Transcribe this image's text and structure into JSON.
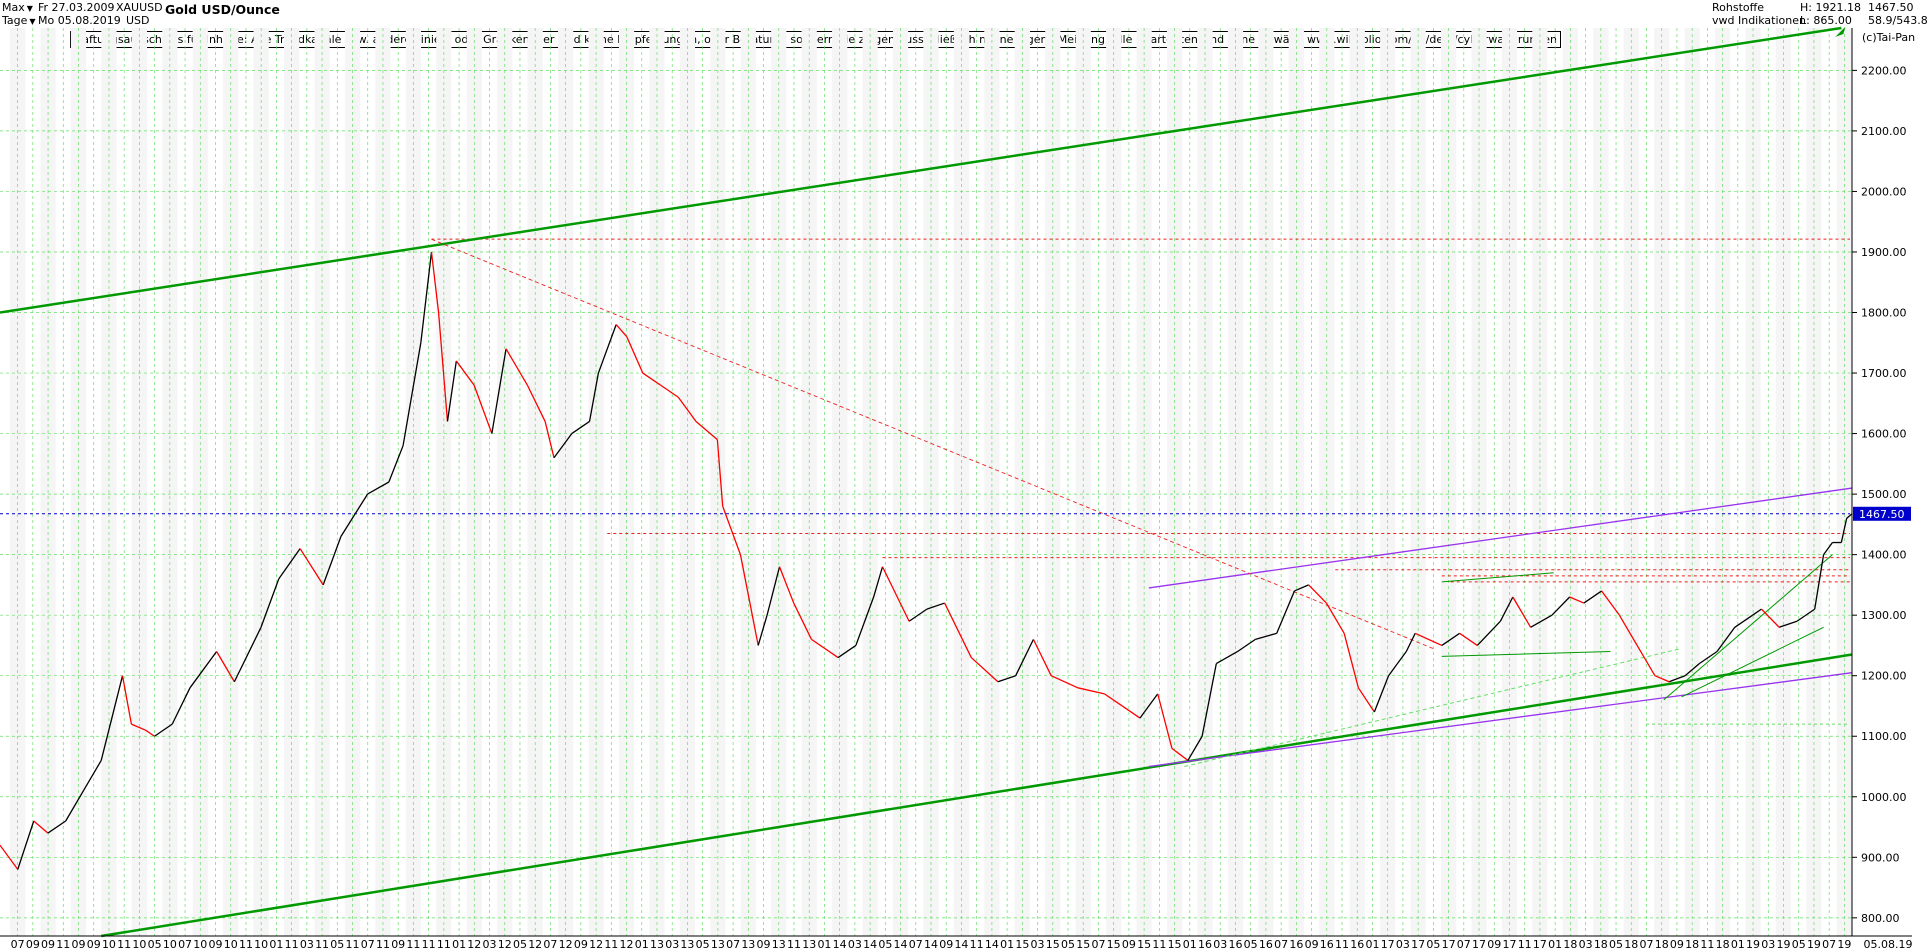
{
  "header": {
    "range": "Max",
    "interval": "Tage",
    "date_start": "Fr 27.03.2009",
    "date_end": "Mo 05.08.2019",
    "symbol": "XAUUSD",
    "currency": "USD",
    "title": "Gold USD/Ounce",
    "category": "Rohstoffe",
    "provider": "vwd Indikationen",
    "high": "H: 1921.18",
    "low": "L: 865.00",
    "last": "1467.50",
    "ratio": "58.9/543.8",
    "copyright": "(c)Tai-Pan",
    "end_date_label": "05.08.19"
  },
  "disclaimer": "Haftungsausschluss für Inhalte: Alle Trendkanäle bzw. andere Linien, oder Grafiken hier sind keine Empfehlungen, oder Beratung, sondern die zeigen ausschließlich meine eigene Meinung. Alle Chartdaten sind ohne Gewähr.  www.wikifolio.com/de/de/p/cyberwaehrungen",
  "colors": {
    "up": "#000000",
    "down": "#ff0000",
    "grid": "#66dd66",
    "main_channel": "#009900",
    "violet": "#9933ee",
    "ref_red": "#ee2222",
    "last_line": "#0000cc",
    "last_box": "#0000cc"
  },
  "chart_data": {
    "type": "line",
    "title": "Gold USD/Ounce",
    "ylim": [
      770,
      2270
    ],
    "y_ticks": [
      800,
      900,
      1000,
      1100,
      1200,
      1300,
      1400,
      1500,
      1600,
      1700,
      1800,
      1900,
      2000,
      2100,
      2200
    ],
    "y_tick_labels": [
      "800.00",
      "900.00",
      "1000.00",
      "1100.00",
      "1200.00",
      "1300.00",
      "1400.00",
      "1500.00",
      "1600.00",
      "1700.00",
      "1800.00",
      "1900.00",
      "2000.00",
      "2100.00",
      "2200.00"
    ],
    "x_range": [
      2009.23,
      2019.66
    ],
    "x_tick_labels": [
      "07",
      "09",
      "09",
      "11",
      "09",
      "09",
      "10",
      "11",
      "10",
      "05",
      "10",
      "07",
      "10",
      "09",
      "10",
      "11",
      "10",
      "01",
      "11",
      "03",
      "11",
      "05",
      "11",
      "07",
      "11",
      "09",
      "11",
      "11",
      "11",
      "01",
      "12",
      "03",
      "12",
      "05",
      "12",
      "07",
      "12",
      "09",
      "12",
      "11",
      "12",
      "01",
      "13",
      "03",
      "13",
      "05",
      "13",
      "07",
      "13",
      "09",
      "13",
      "11",
      "13",
      "01",
      "14",
      "03",
      "14",
      "05",
      "14",
      "07",
      "14",
      "09",
      "14",
      "11",
      "14",
      "01",
      "15",
      "03",
      "15",
      "05",
      "15",
      "07",
      "15",
      "09",
      "15",
      "11",
      "15",
      "01",
      "16",
      "03",
      "16",
      "05",
      "16",
      "07",
      "16",
      "09",
      "16",
      "11",
      "16",
      "01",
      "17",
      "03",
      "17",
      "05",
      "17",
      "07",
      "17",
      "09",
      "17",
      "11",
      "17",
      "01",
      "18",
      "03",
      "18",
      "05",
      "18",
      "07",
      "18",
      "09",
      "18",
      "11",
      "18",
      "01",
      "19",
      "03",
      "19",
      "05",
      "19",
      "07",
      "19"
    ],
    "series": [
      {
        "x": [
          2009.23,
          2009.33,
          2009.42,
          2009.5,
          2009.6,
          2009.7,
          2009.8,
          2009.92,
          2009.97,
          2010.05,
          2010.1,
          2010.2,
          2010.3,
          2010.45,
          2010.55,
          2010.7,
          2010.8,
          2010.92,
          2011.05,
          2011.15,
          2011.3,
          2011.42,
          2011.5,
          2011.6,
          2011.66,
          2011.7,
          2011.75,
          2011.8,
          2011.9,
          2012.0,
          2012.08,
          2012.2,
          2012.3,
          2012.35,
          2012.45,
          2012.55,
          2012.6,
          2012.7,
          2012.76,
          2012.85,
          2012.95,
          2013.05,
          2013.15,
          2013.27,
          2013.3,
          2013.4,
          2013.5,
          2013.55,
          2013.62,
          2013.7,
          2013.8,
          2013.95,
          2014.05,
          2014.15,
          2014.2,
          2014.35,
          2014.45,
          2014.55,
          2014.7,
          2014.85,
          2014.95,
          2015.05,
          2015.15,
          2015.3,
          2015.45,
          2015.55,
          2015.65,
          2015.75,
          2015.83,
          2015.92,
          2016.0,
          2016.08,
          2016.2,
          2016.3,
          2016.42,
          2016.52,
          2016.6,
          2016.7,
          2016.8,
          2016.88,
          2016.97,
          2017.05,
          2017.15,
          2017.2,
          2017.35,
          2017.45,
          2017.55,
          2017.68,
          2017.75,
          2017.85,
          2017.97,
          2018.07,
          2018.15,
          2018.25,
          2018.35,
          2018.45,
          2018.55,
          2018.63,
          2018.72,
          2018.8,
          2018.9,
          2019.0,
          2019.1,
          2019.15,
          2019.25,
          2019.35,
          2019.45,
          2019.5,
          2019.55,
          2019.6,
          2019.63,
          2019.66
        ],
        "values": [
          920,
          880,
          960,
          940,
          960,
          1010,
          1060,
          1200,
          1120,
          1110,
          1100,
          1120,
          1180,
          1240,
          1190,
          1280,
          1360,
          1410,
          1350,
          1430,
          1500,
          1520,
          1580,
          1750,
          1900,
          1800,
          1620,
          1720,
          1680,
          1600,
          1740,
          1680,
          1620,
          1560,
          1600,
          1620,
          1700,
          1780,
          1760,
          1700,
          1680,
          1660,
          1620,
          1590,
          1480,
          1400,
          1250,
          1300,
          1380,
          1320,
          1260,
          1230,
          1250,
          1330,
          1380,
          1290,
          1310,
          1320,
          1230,
          1190,
          1200,
          1260,
          1200,
          1180,
          1170,
          1150,
          1130,
          1170,
          1080,
          1060,
          1100,
          1220,
          1240,
          1260,
          1270,
          1340,
          1350,
          1320,
          1270,
          1180,
          1140,
          1200,
          1240,
          1270,
          1250,
          1270,
          1250,
          1290,
          1330,
          1280,
          1300,
          1330,
          1320,
          1340,
          1300,
          1250,
          1200,
          1190,
          1200,
          1220,
          1240,
          1280,
          1300,
          1310,
          1280,
          1290,
          1310,
          1400,
          1420,
          1420,
          1460,
          1467.5
        ]
      }
    ],
    "last_price": 1467.5,
    "reference_levels": [
      1921.18,
      1467.5,
      1435,
      1395,
      1375,
      1365,
      1355,
      1120
    ],
    "trendlines": [
      {
        "x": [
          2009.23,
          2019.6
        ],
        "y": [
          1800,
          2270
        ]
      },
      {
        "x": [
          2009.8,
          2019.66
        ],
        "y": [
          770,
          1235
        ]
      },
      {
        "x": [
          2015.7,
          2019.66
        ],
        "y": [
          1345,
          1510
        ]
      },
      {
        "x": [
          2015.7,
          2019.66
        ],
        "y": [
          1050,
          1205
        ]
      },
      {
        "x": [
          2011.66,
          2017.3
        ],
        "y": [
          1921,
          1245
        ]
      },
      {
        "x": [
          2015.9,
          2018.7
        ],
        "y": [
          1050,
          1245
        ]
      },
      {
        "x": [
          2018.6,
          2019.55
        ],
        "y": [
          1160,
          1400
        ]
      },
      {
        "x": [
          2018.7,
          2019.5
        ],
        "y": [
          1165,
          1280
        ]
      },
      {
        "x": [
          2017.35,
          2017.98
        ],
        "y": [
          1355,
          1370
        ]
      },
      {
        "x": [
          2017.35,
          2018.3
        ],
        "y": [
          1232,
          1240
        ]
      }
    ]
  }
}
